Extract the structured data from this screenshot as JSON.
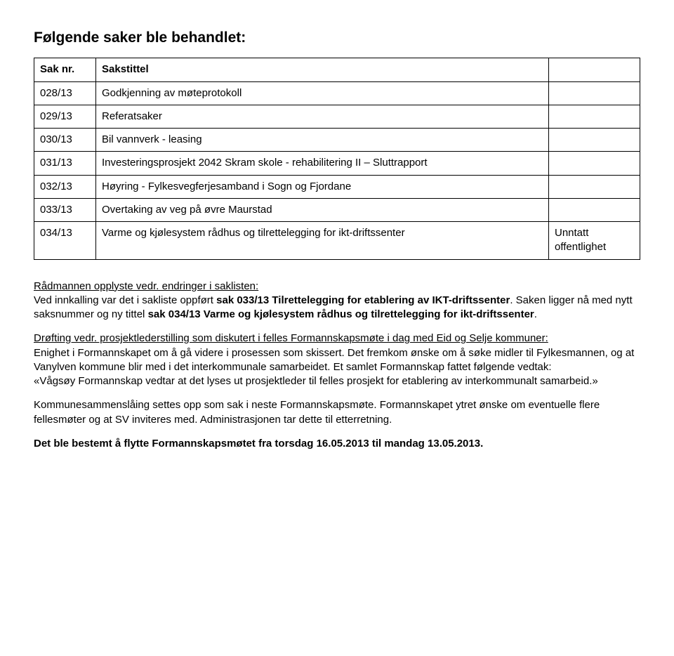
{
  "title": "Følgende saker ble behandlet:",
  "table": {
    "headers": {
      "saknr": "Sak nr.",
      "sakstittel": "Sakstittel",
      "note": ""
    },
    "rows": [
      {
        "saknr": "028/13",
        "tittel": "Godkjenning av møteprotokoll",
        "note": ""
      },
      {
        "saknr": "029/13",
        "tittel": "Referatsaker",
        "note": ""
      },
      {
        "saknr": "030/13",
        "tittel": "Bil vannverk - leasing",
        "note": ""
      },
      {
        "saknr": "031/13",
        "tittel": "Investeringsprosjekt 2042 Skram skole - rehabilitering II – Sluttrapport",
        "note": ""
      },
      {
        "saknr": "032/13",
        "tittel": "Høyring - Fylkesvegferjesamband i Sogn og Fjordane",
        "note": ""
      },
      {
        "saknr": "033/13",
        "tittel": "Overtaking av veg på øvre Maurstad",
        "note": ""
      },
      {
        "saknr": "034/13",
        "tittel": "Varme og kjølesystem rådhus og tilrettelegging for ikt-driftssenter",
        "note": "Unntatt offentlighet"
      }
    ]
  },
  "paragraphs": {
    "p1_lead": "Rådmannen opplyste vedr. endringer i saklisten:",
    "p1_body_a": "Ved innkalling var det i sakliste oppført ",
    "p1_body_b": "sak 033/13 Tilrettelegging for etablering av IKT-driftssenter",
    "p1_body_c": ". Saken ligger nå med nytt saksnummer og ny tittel ",
    "p1_body_d": "sak 034/13 Varme og kjølesystem rådhus og tilrettelegging for ikt-driftssenter",
    "p1_body_e": ".",
    "p2_lead": "Drøfting vedr. prosjektlederstilling som diskutert i felles Formannskapsmøte i dag med Eid og Selje kommuner:",
    "p2_body": "Enighet i Formannskapet om å gå videre i prosessen som skissert. Det fremkom ønske om å søke midler til Fylkesmannen, og at Vanylven kommune blir med i det interkommunale samarbeidet. Et samlet Formannskap fattet følgende vedtak:",
    "p2_quote": "«Vågsøy Formannskap vedtar at det lyses ut prosjektleder til felles prosjekt for etablering av interkommunalt samarbeid.»",
    "p3": "Kommunesammenslåing settes opp som sak i neste Formannskapsmøte. Formannskapet ytret ønske om eventuelle flere fellesmøter og at SV inviteres med. Administrasjonen tar dette til etterretning.",
    "p4": "Det ble bestemt å flytte Formannskapsmøtet fra torsdag 16.05.2013 til mandag 13.05.2013."
  }
}
